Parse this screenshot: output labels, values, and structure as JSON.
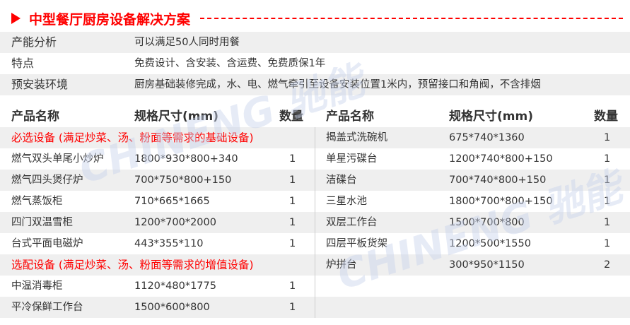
{
  "title": "中型餐厅厨房设备解决方案",
  "info": [
    {
      "label": "产能分析",
      "value": "可以满足50人同时用餐"
    },
    {
      "label": "特点",
      "value": "免费设计、含安装、含运费、免费质保1年"
    },
    {
      "label": "预安装环境",
      "value": "厨房基础装修完成，水、电、燃气牵引至设备安装位置1米内，预留接口和角阀，不含排烟"
    }
  ],
  "headers": {
    "name": "产品名称",
    "spec": "规格尺寸(mm)",
    "qty": "数量"
  },
  "left": [
    {
      "section": "必选设备 (满足炒菜、汤、粉面等需求的基础设备)"
    },
    {
      "name": "燃气双头单尾小炒炉",
      "spec": "1800*930*800+340",
      "qty": "1"
    },
    {
      "name": "燃气四头煲仔炉",
      "spec": "700*750*800+150",
      "qty": "1"
    },
    {
      "name": "燃气蒸饭柜",
      "spec": "710*665*1665",
      "qty": "1"
    },
    {
      "name": "四门双温雪柜",
      "spec": "1200*700*2000",
      "qty": "1"
    },
    {
      "name": "台式平面电磁炉",
      "spec": "443*355*110",
      "qty": "1"
    },
    {
      "section": "选配设备 (满足炒菜、汤、粉面等需求的增值设备)"
    },
    {
      "name": "中温消毒柜",
      "spec": "1120*480*1775",
      "qty": "1"
    },
    {
      "name": "平冷保鲜工作台",
      "spec": "1500*600*800",
      "qty": "1"
    }
  ],
  "right": [
    {
      "name": "揭盖式洗碗机",
      "spec": "675*740*1360",
      "qty": "1"
    },
    {
      "name": "单星污碟台",
      "spec": "1200*740*800+150",
      "qty": "1"
    },
    {
      "name": "洁碟台",
      "spec": "700*740*800+150",
      "qty": "1"
    },
    {
      "name": "三星水池",
      "spec": "1800*700*800+150",
      "qty": "1"
    },
    {
      "name": "双层工作台",
      "spec": "1500*700*800",
      "qty": "1"
    },
    {
      "name": "四层平板货架",
      "spec": "1200*500*1550",
      "qty": "1"
    },
    {
      "name": "炉拼台",
      "spec": "300*950*1150",
      "qty": "2"
    }
  ],
  "watermark": "CHINENG 驰能",
  "colors": {
    "accent": "#ff0000",
    "stripe": "#efefef",
    "watermark": "#dfe5f3"
  }
}
